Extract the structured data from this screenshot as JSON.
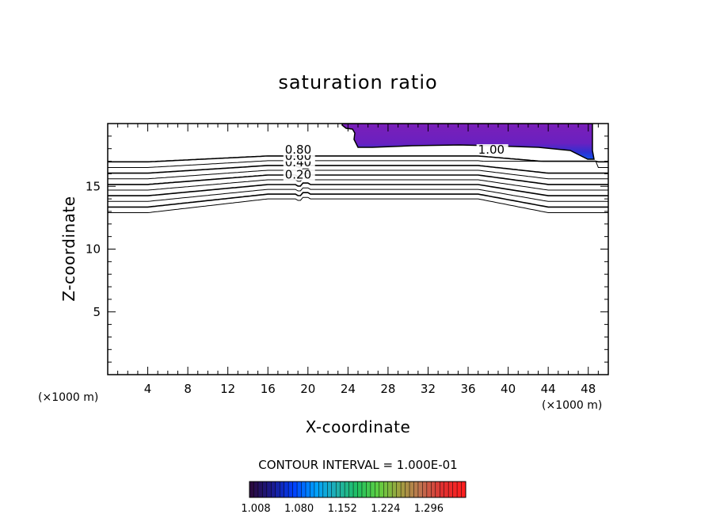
{
  "chart_data": {
    "type": "contour",
    "title": "saturation ratio",
    "xlabel": "X-coordinate",
    "ylabel": "Z-coordinate",
    "x_unit": "(×1000 m)",
    "x_unit_right": "(×1000 m)",
    "xlim": [
      0,
      50
    ],
    "ylim": [
      0,
      20
    ],
    "xticks": [
      4,
      8,
      12,
      16,
      20,
      24,
      28,
      32,
      36,
      40,
      44,
      48
    ],
    "yticks": [
      5,
      10,
      15
    ],
    "contour_interval_text": "CONTOUR INTERVAL = 1.000E-01",
    "contour_levels": [
      0.1,
      0.2,
      0.3,
      0.4,
      0.5,
      0.6,
      0.7,
      0.8,
      0.9,
      1.0
    ],
    "contour_labels": [
      {
        "text": "0.20",
        "x": 17.7,
        "z": 15.6
      },
      {
        "text": "0.40",
        "x": 17.7,
        "z": 16.6
      },
      {
        "text": "0.60",
        "x": 17.7,
        "z": 17.1
      },
      {
        "text": "0.80",
        "x": 17.7,
        "z": 17.6
      },
      {
        "text": "1.00",
        "x": 37.0,
        "z": 17.6
      }
    ],
    "filled_region": {
      "description": "supersaturation shading",
      "x_range": [
        23.6,
        48.8
      ],
      "z_range": [
        17.0,
        20.0
      ]
    },
    "colorbar": {
      "min": 1.008,
      "max": 1.368,
      "tick_labels": [
        "1.008",
        "1.080",
        "1.152",
        "1.224",
        "1.296"
      ],
      "colors": [
        "#2a0a40",
        "#1a1a90",
        "#0040ff",
        "#00a0ff",
        "#20b0b0",
        "#20c060",
        "#60d040",
        "#a0a040",
        "#c07050",
        "#e03030",
        "#ff2020"
      ]
    },
    "fill_color": "#7a1fb8"
  }
}
